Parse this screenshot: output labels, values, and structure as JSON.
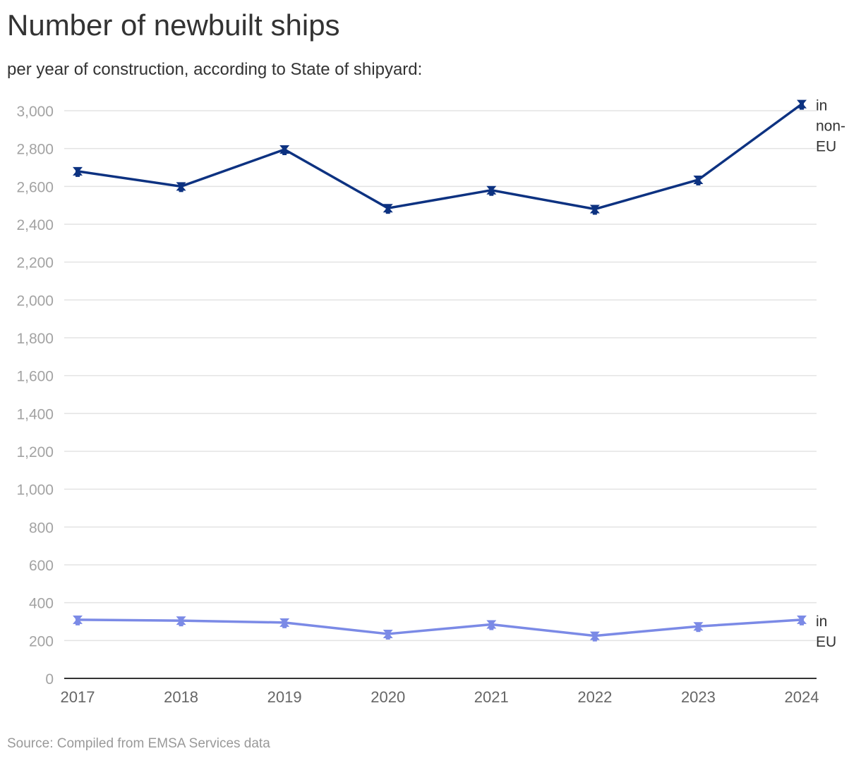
{
  "chart_data": {
    "type": "line",
    "title": "Number of newbuilt ships",
    "subtitle": "per year of construction, according to State of shipyard:",
    "source": "Source: Compiled from EMSA Services data",
    "x": [
      "2017",
      "2018",
      "2019",
      "2020",
      "2021",
      "2022",
      "2023",
      "2024"
    ],
    "ylim": [
      0,
      3000
    ],
    "yticks": [
      "0",
      "200",
      "400",
      "600",
      "800",
      "1,000",
      "1,200",
      "1,400",
      "1,600",
      "1,800",
      "2,000",
      "2,200",
      "2,400",
      "2,600",
      "2,800",
      "3,000"
    ],
    "grid": true,
    "series": [
      {
        "name": "in non-EU",
        "label_lines": [
          "in",
          "non-",
          "EU"
        ],
        "color": "#0d3281",
        "values": [
          2680,
          2600,
          2795,
          2485,
          2580,
          2480,
          2635,
          3035
        ]
      },
      {
        "name": "in EU",
        "label_lines": [
          "in",
          "EU"
        ],
        "color": "#7b8ae6",
        "values": [
          310,
          305,
          295,
          235,
          285,
          225,
          275,
          310
        ]
      }
    ]
  }
}
